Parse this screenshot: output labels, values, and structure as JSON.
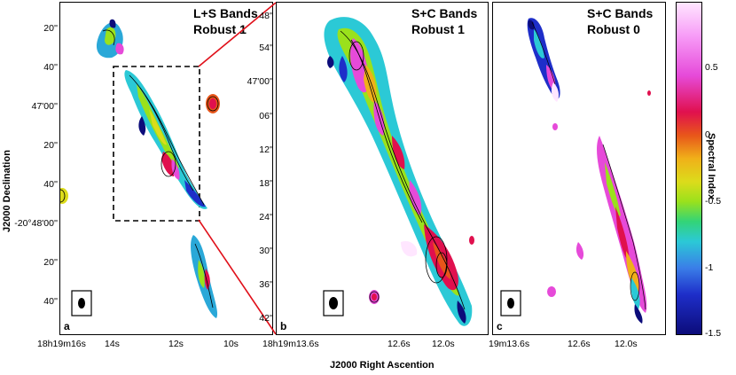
{
  "panels": [
    {
      "id": "a",
      "title_line1": "L+S Bands",
      "title_line2": "Robust 1",
      "label": "a"
    },
    {
      "id": "b",
      "title_line1": "S+C Bands",
      "title_line2": "Robust 1",
      "label": "b"
    },
    {
      "id": "c",
      "title_line1": "S+C Bands",
      "title_line2": "Robust 0",
      "label": "c"
    }
  ],
  "panel_a": {
    "y_ticks": [
      "20''",
      "40''",
      "47'00''",
      "20''",
      "40''",
      "-20°48'00''",
      "20''",
      "40''"
    ],
    "x_ticks": [
      "18h19m16s",
      "14s",
      "12s",
      "10s"
    ]
  },
  "panel_b": {
    "y_ticks": [
      "48''",
      "54''",
      "47'00''",
      "06''",
      "12''",
      "18''",
      "24''",
      "30''",
      "36''",
      "42''"
    ],
    "x_ticks": [
      "18h19m13.6s",
      "12.6s",
      "12.0s"
    ]
  },
  "panel_c": {
    "x_ticks": [
      "19m13.6s",
      "12.6s",
      "12.0s"
    ]
  },
  "axes": {
    "y_title": "J2000 Declination",
    "x_title": "J2000 Right Ascention"
  },
  "colorbar": {
    "title": "Spectral Index",
    "ticks": [
      "0.5",
      "0",
      "-0.5",
      "-1",
      "-1.5"
    ],
    "colors": [
      "#ffe6ff",
      "#e64ad9",
      "#e0104e",
      "#f0b019",
      "#9ae11c",
      "#2bc9d6",
      "#1e2ec9",
      "#0c0c7a"
    ]
  }
}
